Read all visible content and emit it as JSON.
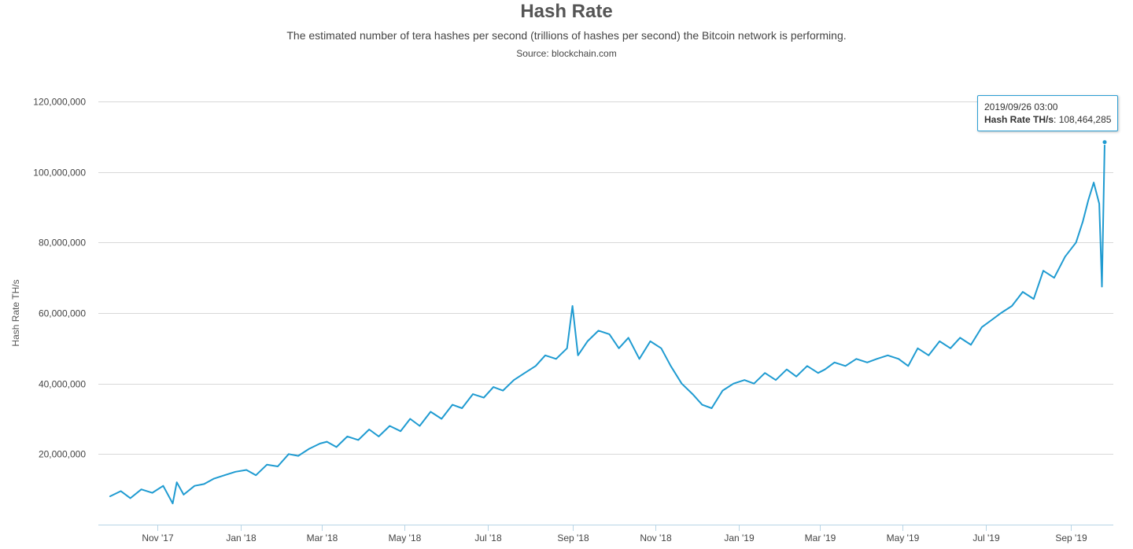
{
  "title": "Hash Rate",
  "subtitle": "The estimated number of tera hashes per second (trillions of hashes per second) the Bitcoin network is performing.",
  "source": "Source: blockchain.com",
  "colors": {
    "line": "#1f9bd1",
    "grid": "#d8d8d8",
    "axis": "#b8d5e6"
  },
  "tooltip": {
    "date": "2019/09/26 03:00",
    "series": "Hash Rate TH/s",
    "value": "108,464,285"
  },
  "chart_data": {
    "type": "line",
    "title": "Hash Rate",
    "xlabel": "",
    "ylabel": "Hash Rate TH/s",
    "ylim": [
      0,
      120000000
    ],
    "yticks": [
      {
        "value": 20000000,
        "label": "20,000,000"
      },
      {
        "value": 40000000,
        "label": "40,000,000"
      },
      {
        "value": 60000000,
        "label": "60,000,000"
      },
      {
        "value": 80000000,
        "label": "80,000,000"
      },
      {
        "value": 100000000,
        "label": "100,000,000"
      },
      {
        "value": 120000000,
        "label": "120,000,000"
      }
    ],
    "xlim": [
      "2017-09-26",
      "2019-09-26"
    ],
    "xticks": [
      {
        "value": "2017-11-01",
        "label": "Nov '17"
      },
      {
        "value": "2018-01-01",
        "label": "Jan '18"
      },
      {
        "value": "2018-03-01",
        "label": "Mar '18"
      },
      {
        "value": "2018-05-01",
        "label": "May '18"
      },
      {
        "value": "2018-07-01",
        "label": "Jul '18"
      },
      {
        "value": "2018-09-01",
        "label": "Sep '18"
      },
      {
        "value": "2018-11-01",
        "label": "Nov '18"
      },
      {
        "value": "2019-01-01",
        "label": "Jan '19"
      },
      {
        "value": "2019-03-01",
        "label": "Mar '19"
      },
      {
        "value": "2019-05-01",
        "label": "May '19"
      },
      {
        "value": "2019-07-01",
        "label": "Jul '19"
      },
      {
        "value": "2019-09-01",
        "label": "Sep '19"
      }
    ],
    "grid": true,
    "legend": "none",
    "series": [
      {
        "x": [
          "2017-09-27",
          "2017-10-05",
          "2017-10-12",
          "2017-10-20",
          "2017-10-28",
          "2017-11-05",
          "2017-11-12",
          "2017-11-15",
          "2017-11-20",
          "2017-11-28",
          "2017-12-05",
          "2017-12-12",
          "2017-12-20",
          "2017-12-28",
          "2018-01-05",
          "2018-01-12",
          "2018-01-20",
          "2018-01-28",
          "2018-02-05",
          "2018-02-12",
          "2018-02-20",
          "2018-02-28",
          "2018-03-05",
          "2018-03-12",
          "2018-03-20",
          "2018-03-28",
          "2018-04-05",
          "2018-04-12",
          "2018-04-20",
          "2018-04-28",
          "2018-05-05",
          "2018-05-12",
          "2018-05-20",
          "2018-05-28",
          "2018-06-05",
          "2018-06-12",
          "2018-06-20",
          "2018-06-28",
          "2018-07-05",
          "2018-07-12",
          "2018-07-20",
          "2018-07-28",
          "2018-08-05",
          "2018-08-12",
          "2018-08-20",
          "2018-08-28",
          "2018-09-01",
          "2018-09-05",
          "2018-09-12",
          "2018-09-20",
          "2018-09-28",
          "2018-10-05",
          "2018-10-12",
          "2018-10-20",
          "2018-10-28",
          "2018-11-05",
          "2018-11-12",
          "2018-11-20",
          "2018-11-28",
          "2018-12-05",
          "2018-12-12",
          "2018-12-20",
          "2018-12-28",
          "2019-01-05",
          "2019-01-12",
          "2019-01-20",
          "2019-01-28",
          "2019-02-05",
          "2019-02-12",
          "2019-02-20",
          "2019-02-28",
          "2019-03-05",
          "2019-03-12",
          "2019-03-20",
          "2019-03-28",
          "2019-04-05",
          "2019-04-12",
          "2019-04-20",
          "2019-04-28",
          "2019-05-05",
          "2019-05-12",
          "2019-05-20",
          "2019-05-28",
          "2019-06-05",
          "2019-06-12",
          "2019-06-20",
          "2019-06-28",
          "2019-07-05",
          "2019-07-12",
          "2019-07-20",
          "2019-07-28",
          "2019-08-05",
          "2019-08-12",
          "2019-08-20",
          "2019-08-28",
          "2019-09-05",
          "2019-09-10",
          "2019-09-14",
          "2019-09-18",
          "2019-09-22",
          "2019-09-24",
          "2019-09-26"
        ],
        "values": [
          8000000,
          9500000,
          7500000,
          10000000,
          9000000,
          11000000,
          6000000,
          12000000,
          8500000,
          11000000,
          11500000,
          13000000,
          14000000,
          15000000,
          15500000,
          14000000,
          17000000,
          16500000,
          20000000,
          19500000,
          21500000,
          23000000,
          23500000,
          22000000,
          25000000,
          24000000,
          27000000,
          25000000,
          28000000,
          26500000,
          30000000,
          28000000,
          32000000,
          30000000,
          34000000,
          33000000,
          37000000,
          36000000,
          39000000,
          38000000,
          41000000,
          43000000,
          45000000,
          48000000,
          47000000,
          50000000,
          62000000,
          48000000,
          52000000,
          55000000,
          54000000,
          50000000,
          53000000,
          47000000,
          52000000,
          50000000,
          45000000,
          40000000,
          37000000,
          34000000,
          33000000,
          38000000,
          40000000,
          41000000,
          40000000,
          43000000,
          41000000,
          44000000,
          42000000,
          45000000,
          43000000,
          44000000,
          46000000,
          45000000,
          47000000,
          46000000,
          47000000,
          48000000,
          47000000,
          45000000,
          50000000,
          48000000,
          52000000,
          50000000,
          53000000,
          51000000,
          56000000,
          58000000,
          60000000,
          62000000,
          66000000,
          64000000,
          72000000,
          70000000,
          76000000,
          80000000,
          86000000,
          92000000,
          97000000,
          91000000,
          67500000,
          108464285
        ]
      }
    ]
  }
}
